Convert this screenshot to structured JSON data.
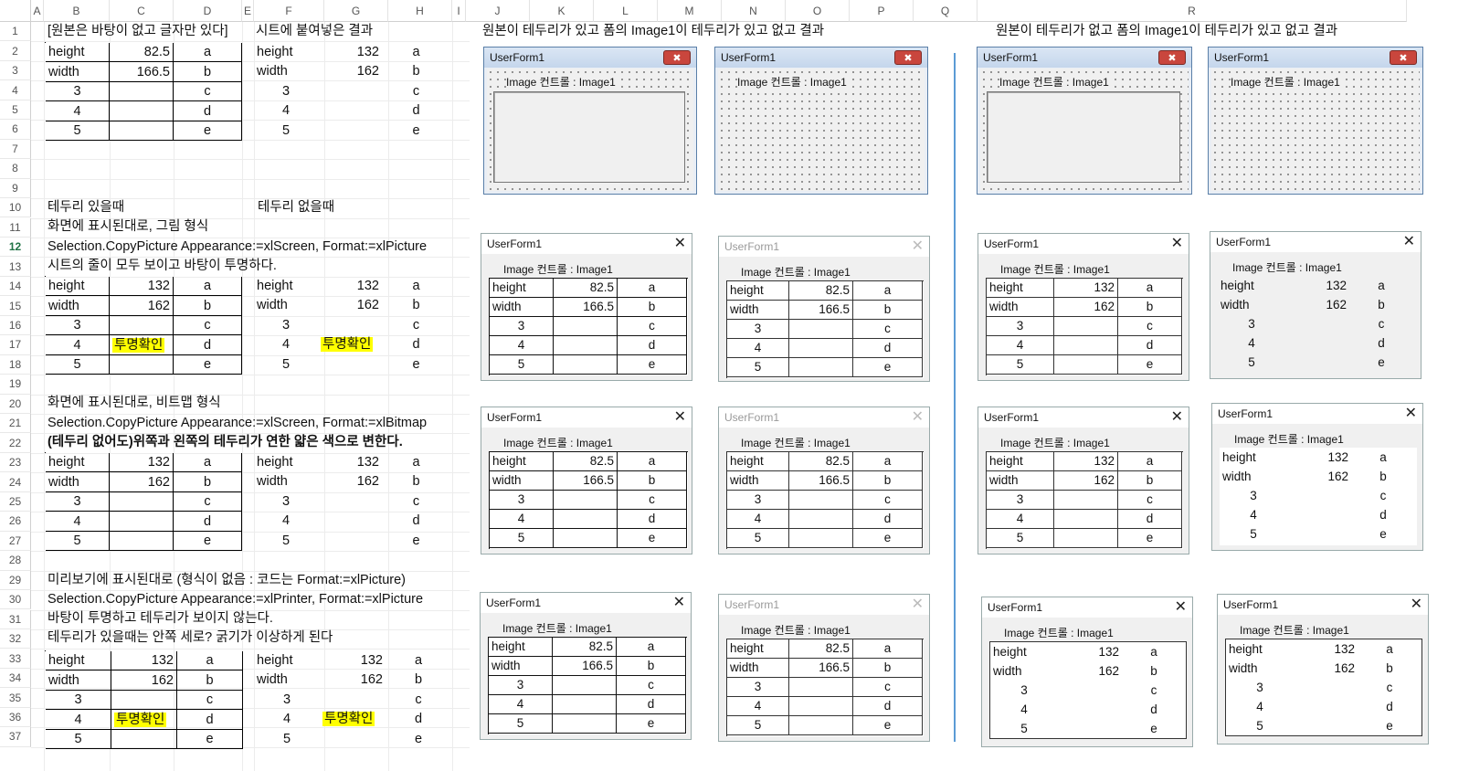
{
  "columns": [
    "A",
    "B",
    "C",
    "D",
    "E",
    "F",
    "G",
    "H",
    "I",
    "J",
    "K",
    "L",
    "M",
    "N",
    "O",
    "P",
    "Q",
    "R"
  ],
  "rows": [
    "1",
    "2",
    "3",
    "4",
    "5",
    "6",
    "7",
    "8",
    "9",
    "10",
    "11",
    "12",
    "13",
    "14",
    "15",
    "16",
    "17",
    "18",
    "19",
    "20",
    "21",
    "22",
    "23",
    "24",
    "25",
    "26",
    "27",
    "28",
    "29",
    "30",
    "31",
    "32",
    "33",
    "34",
    "35",
    "36",
    "37"
  ],
  "active_row": "12",
  "texts": {
    "b1": "[원본은 바탕이 없고 글자만 있다]",
    "f1": "시트에 붙여넣은 결과",
    "j1": "원본이 테두리가 있고 폼의 Image1이 테두리가 있고 없고 결과",
    "r1": "원본이 테두리가 없고 폼의 Image1이 테두리가 있고 없고 결과",
    "b10": "테두리 있을때",
    "f10": "테두리 없을때",
    "b11": "화면에 표시된대로, 그림 형식",
    "b12": "Selection.CopyPicture Appearance:=xlScreen, Format:=xlPicture",
    "b13": "시트의 줄이 모두 보이고 바탕이 투명하다.",
    "b20": "화면에 표시된대로, 비트맵 형식",
    "b21": "Selection.CopyPicture Appearance:=xlScreen, Format:=xlBitmap",
    "b22": "(테두리 없어도)위쪽과 왼쪽의 테두리가 연한 얇은 색으로 변한다.",
    "b29": "미리보기에 표시된대로 (형식이 없음 : 코드는 Format:=xlPicture)",
    "b30": "Selection.CopyPicture Appearance:=xlPrinter, Format:=xlPicture",
    "b31": "바탕이 투명하고 테두리가 보이지 않는다.",
    "b32": "테두리가 있을때는 안쪽 세로? 굵기가 이상하게 된다"
  },
  "highlight_text": "투명확인",
  "highlight_color": "#ffff00",
  "table_original": [
    [
      "height",
      "82.5",
      "a"
    ],
    [
      "width",
      "166.5",
      "b"
    ],
    [
      "3",
      "",
      "c"
    ],
    [
      "4",
      "",
      "d"
    ],
    [
      "5",
      "",
      "e"
    ]
  ],
  "table_pasted": [
    [
      "height",
      "132",
      "a"
    ],
    [
      "width",
      "162",
      "b"
    ],
    [
      "3",
      "",
      "c"
    ],
    [
      "4",
      "",
      "d"
    ],
    [
      "5",
      "",
      "e"
    ]
  ],
  "userform": {
    "title": "UserForm1",
    "label": "Image 컨트롤 : Image1",
    "close_symbol": "✕",
    "close_symbol_classic": "✖"
  },
  "separator_color": "#5b9bd5"
}
